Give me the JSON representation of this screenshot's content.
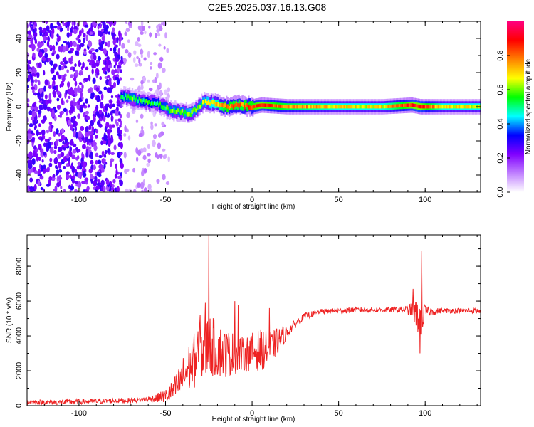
{
  "title": "C2E5.2025.037.16.13.G08",
  "chart_data": [
    {
      "type": "heatmap",
      "xlabel": "Height of straight line (km)",
      "ylabel": "Frequency (Hz)",
      "xlim": [
        -130,
        132
      ],
      "ylim": [
        -50,
        50
      ],
      "x_ticks": [
        -100,
        -50,
        0,
        50,
        100
      ],
      "y_ticks": [
        -40,
        -20,
        0,
        20,
        40
      ],
      "colorbar": {
        "label": "Normalized spectral amplitude",
        "range": [
          0,
          1
        ],
        "ticks": [
          "0.0",
          "0.2",
          "0.4",
          "0.6",
          "0.8"
        ],
        "tick_values": [
          0,
          0.2,
          0.4,
          0.6,
          0.8
        ],
        "colormap": [
          "#ffffff",
          "#c080ff",
          "#8000ff",
          "#0000ff",
          "#00ffff",
          "#00ff00",
          "#ffff00",
          "#ff8000",
          "#ff0000",
          "#ff0080"
        ]
      },
      "noise_region_x": [
        -130,
        -48
      ],
      "signal_ridge": [
        {
          "x": -76,
          "freq": 6,
          "amp": 0.45
        },
        {
          "x": -70,
          "freq": 5,
          "amp": 0.5
        },
        {
          "x": -62,
          "freq": 3,
          "amp": 0.45
        },
        {
          "x": -55,
          "freq": 2,
          "amp": 0.45
        },
        {
          "x": -48,
          "freq": -2,
          "amp": 0.5
        },
        {
          "x": -42,
          "freq": -3,
          "amp": 0.5
        },
        {
          "x": -36,
          "freq": -4,
          "amp": 0.55
        },
        {
          "x": -32,
          "freq": -1,
          "amp": 0.5
        },
        {
          "x": -28,
          "freq": 3,
          "amp": 0.55
        },
        {
          "x": -22,
          "freq": 2,
          "amp": 0.6
        },
        {
          "x": -15,
          "freq": 0,
          "amp": 0.75
        },
        {
          "x": -8,
          "freq": 1,
          "amp": 0.7
        },
        {
          "x": 0,
          "freq": 0,
          "amp": 0.75
        },
        {
          "x": 5,
          "freq": 1,
          "amp": 0.8
        },
        {
          "x": 20,
          "freq": 0,
          "amp": 0.7
        },
        {
          "x": 50,
          "freq": 0,
          "amp": 0.6
        },
        {
          "x": 75,
          "freq": 0,
          "amp": 0.6
        },
        {
          "x": 92,
          "freq": 1,
          "amp": 0.8
        },
        {
          "x": 97,
          "freq": 0,
          "amp": 0.8
        },
        {
          "x": 110,
          "freq": 0,
          "amp": 0.6
        },
        {
          "x": 132,
          "freq": 0,
          "amp": 0.6
        }
      ]
    },
    {
      "type": "line",
      "xlabel": "Height of straight line (km)",
      "ylabel": "SNR (10 * v/v)",
      "xlim": [
        -130,
        132
      ],
      "ylim": [
        0,
        9800
      ],
      "x_ticks": [
        -100,
        -50,
        0,
        50,
        100
      ],
      "y_ticks": [
        0,
        2000,
        4000,
        6000,
        8000
      ],
      "line_color": "#ee2222",
      "series": [
        {
          "x": [
            -130,
            -110,
            -90,
            -70,
            -62,
            -55,
            -50,
            -45,
            -40,
            -35,
            -30,
            -27,
            -25,
            -20,
            -15,
            -10,
            -5,
            0,
            5,
            10,
            15,
            20,
            25,
            30,
            40,
            50,
            60,
            70,
            80,
            88,
            92,
            95,
            97,
            99,
            101,
            105,
            110,
            120,
            132
          ],
          "y": [
            200,
            200,
            250,
            300,
            350,
            450,
            550,
            900,
            1600,
            2400,
            3000,
            3300,
            3500,
            3200,
            3000,
            3000,
            2900,
            3100,
            3200,
            3300,
            3700,
            4200,
            4700,
            5100,
            5400,
            5450,
            5500,
            5500,
            5500,
            5500,
            5500,
            5200,
            5000,
            5200,
            5400,
            5400,
            5450,
            5450,
            5450
          ],
          "noise": [
            150,
            150,
            150,
            150,
            150,
            250,
            400,
            700,
            1200,
            1500,
            1800,
            2000,
            1800,
            1600,
            1400,
            1200,
            1000,
            1100,
            1200,
            1000,
            800,
            400,
            250,
            200,
            150,
            150,
            150,
            150,
            150,
            200,
            400,
            900,
            1200,
            800,
            300,
            200,
            150,
            150,
            150
          ]
        }
      ],
      "spikes": [
        {
          "x": -25,
          "y": 9800
        },
        {
          "x": -27,
          "y": 5900
        },
        {
          "x": -30,
          "y": 5200
        },
        {
          "x": -10,
          "y": 6000
        },
        {
          "x": -8,
          "y": 5800
        },
        {
          "x": 10,
          "y": 5600
        },
        {
          "x": 93,
          "y": 6700
        },
        {
          "x": 98,
          "y": 8900
        },
        {
          "x": 97,
          "y": 3000
        }
      ]
    }
  ]
}
